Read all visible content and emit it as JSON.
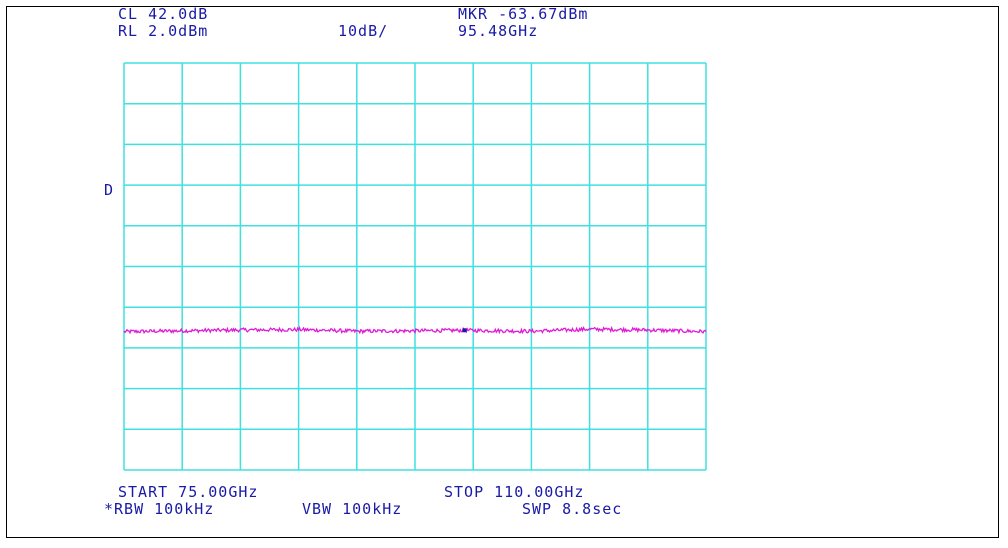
{
  "header": {
    "cl": "CL 42.0dB",
    "rl": "RL 2.0dBm",
    "scale": "10dB/",
    "marker_level": "MKR -63.67dBm",
    "marker_freq": "95.48GHz"
  },
  "side_marker": "D",
  "footer": {
    "start": "START 75.00GHz",
    "stop": "STOP 110.00GHz",
    "rbw": "*RBW 100kHz",
    "vbw": "VBW 100kHz",
    "sweep": "SWP 8.8sec"
  },
  "colors": {
    "grid": "#3fe0e0",
    "trace": "#e01ad8",
    "text": "#1a1aa6",
    "marker": "#1a1aa6"
  },
  "chart_data": {
    "type": "line",
    "title": "",
    "xlabel": "",
    "ylabel": "",
    "x_unit": "GHz",
    "y_unit": "dBm",
    "xlim": [
      75.0,
      110.0
    ],
    "ylim": [
      -98.0,
      2.0
    ],
    "grid": true,
    "divisions": {
      "x": 10,
      "y": 10
    },
    "series": [
      {
        "x": [
          75.0,
          78.5,
          82.0,
          85.5,
          89.0,
          92.5,
          95.48,
          99.5,
          103.0,
          106.5,
          110.0
        ],
        "values": [
          -64.0,
          -63.8,
          -63.6,
          -63.5,
          -63.9,
          -63.8,
          -63.67,
          -63.9,
          -63.4,
          -63.6,
          -64.0
        ]
      }
    ],
    "markers": [
      {
        "x": 95.48,
        "y": -63.67
      }
    ]
  }
}
